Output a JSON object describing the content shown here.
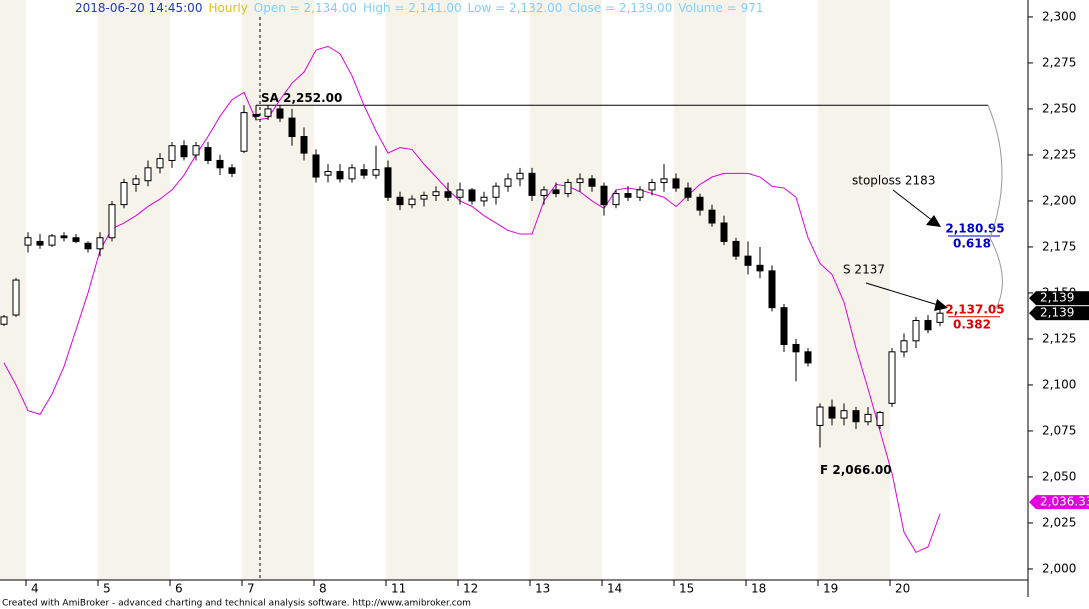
{
  "chart_data": {
    "type": "candlestick",
    "title": "2018-06-20 14:45:00",
    "interval": "Hourly",
    "quote": [
      "Open = 2,134.00",
      "High = 2,141.00",
      "Low = 2,132.00",
      "Close = 2,139.00",
      "Volume = 971"
    ],
    "categories": [
      null,
      null,
      "4",
      null,
      null,
      null,
      null,
      null,
      "5",
      null,
      null,
      null,
      null,
      null,
      "6",
      null,
      null,
      null,
      null,
      null,
      "7",
      null,
      null,
      null,
      null,
      null,
      "8",
      null,
      null,
      null,
      null,
      null,
      "11",
      null,
      null,
      null,
      null,
      null,
      "12",
      null,
      null,
      null,
      null,
      null,
      "13",
      null,
      null,
      null,
      null,
      null,
      "14",
      null,
      null,
      null,
      null,
      null,
      "15",
      null,
      null,
      null,
      null,
      null,
      "18",
      null,
      null,
      null,
      null,
      null,
      "19",
      null,
      null,
      null,
      null,
      null,
      "20",
      null,
      null,
      null,
      null
    ],
    "open": [
      2133,
      2138,
      2176,
      2178,
      2176,
      2181,
      2180,
      2177,
      2174,
      2180,
      2198,
      2209,
      2211,
      2218,
      2222,
      2230,
      2225,
      2229,
      2222,
      2218,
      2227,
      2247,
      2246,
      2250,
      2245,
      2235,
      2225,
      2214,
      2216,
      2212,
      2217,
      2214,
      2218,
      2202,
      2198,
      2201,
      2203,
      2205,
      2202,
      2206,
      2200,
      2202,
      2208,
      2212,
      2215,
      2203,
      2206,
      2204,
      2210,
      2212,
      2208,
      2198,
      2204,
      2202,
      2206,
      2210,
      2212,
      2207,
      2202,
      2195,
      2188,
      2178,
      2170,
      2165,
      2162,
      2142,
      2122,
      2118,
      2078,
      2088,
      2082,
      2086,
      2080,
      2078,
      2090,
      2118,
      2124,
      2135,
      2134
    ],
    "high": [
      2138,
      2158,
      2183,
      2182,
      2182,
      2183,
      2182,
      2178,
      2183,
      2200,
      2212,
      2214,
      2222,
      2226,
      2232,
      2233,
      2232,
      2232,
      2225,
      2220,
      2252,
      2252,
      2252,
      2252,
      2250,
      2240,
      2228,
      2220,
      2220,
      2220,
      2220,
      2230,
      2222,
      2205,
      2203,
      2205,
      2208,
      2210,
      2210,
      2207,
      2205,
      2210,
      2215,
      2218,
      2218,
      2208,
      2210,
      2212,
      2215,
      2214,
      2210,
      2206,
      2208,
      2208,
      2212,
      2220,
      2215,
      2210,
      2204,
      2198,
      2192,
      2180,
      2178,
      2175,
      2165,
      2144,
      2125,
      2120,
      2090,
      2092,
      2090,
      2088,
      2088,
      2086,
      2120,
      2128,
      2137,
      2138,
      2141
    ],
    "low": [
      2132,
      2137,
      2172,
      2174,
      2175,
      2178,
      2177,
      2172,
      2170,
      2178,
      2196,
      2205,
      2208,
      2215,
      2218,
      2222,
      2222,
      2220,
      2214,
      2213,
      2226,
      2244,
      2244,
      2243,
      2230,
      2222,
      2210,
      2210,
      2210,
      2210,
      2212,
      2212,
      2200,
      2195,
      2196,
      2197,
      2200,
      2200,
      2198,
      2198,
      2197,
      2198,
      2205,
      2208,
      2200,
      2198,
      2202,
      2202,
      2205,
      2205,
      2192,
      2196,
      2200,
      2200,
      2203,
      2205,
      2205,
      2200,
      2192,
      2186,
      2176,
      2168,
      2160,
      2158,
      2140,
      2118,
      2102,
      2110,
      2066,
      2078,
      2078,
      2076,
      2078,
      2076,
      2088,
      2115,
      2120,
      2128,
      2132
    ],
    "close": [
      2137,
      2157,
      2180,
      2176,
      2181,
      2180,
      2178,
      2174,
      2180,
      2198,
      2210,
      2212,
      2218,
      2223,
      2230,
      2224,
      2230,
      2222,
      2218,
      2215,
      2248,
      2246,
      2250,
      2245,
      2235,
      2226,
      2213,
      2216,
      2212,
      2218,
      2214,
      2217,
      2202,
      2198,
      2201,
      2203,
      2205,
      2202,
      2206,
      2200,
      2202,
      2208,
      2212,
      2215,
      2203,
      2206,
      2204,
      2210,
      2212,
      2208,
      2198,
      2204,
      2202,
      2206,
      2210,
      2212,
      2207,
      2202,
      2195,
      2188,
      2178,
      2170,
      2165,
      2162,
      2142,
      2122,
      2118,
      2112,
      2088,
      2082,
      2086,
      2080,
      2084,
      2085,
      2118,
      2124,
      2135,
      2130,
      2139
    ],
    "up_color": "#ffffff",
    "down_color": "#000000",
    "line_color": "#e000e0",
    "line_values": [
      2112,
      2100,
      2086,
      2084,
      2095,
      2110,
      2130,
      2150,
      2173,
      2185,
      2188,
      2192,
      2197,
      2201,
      2206,
      2214,
      2225,
      2235,
      2246,
      2255,
      2259,
      2244,
      2245,
      2255,
      2264,
      2270,
      2282,
      2284,
      2280,
      2268,
      2252,
      2238,
      2226,
      2229,
      2228,
      2220,
      2213,
      2206,
      2200,
      2197,
      2192,
      2188,
      2184,
      2182,
      2182,
      2200,
      2209,
      2208,
      2205,
      2200,
      2196,
      2206,
      2207,
      2206,
      2204,
      2202,
      2197,
      2203,
      2209,
      2213,
      2215,
      2215,
      2215,
      2213,
      2208,
      2207,
      2202,
      2180,
      2166,
      2160,
      2145,
      2120,
      2098,
      2075,
      2052,
      2020,
      2009,
      2012,
      2030
    ],
    "ylim": [
      1994,
      2309.2
    ],
    "yticks": [
      {
        "value": 2000,
        "label": "2,000"
      },
      {
        "value": 2025,
        "label": "2,025"
      },
      {
        "value": 2050,
        "label": "2,050"
      },
      {
        "value": 2075,
        "label": "2,075"
      },
      {
        "value": 2100,
        "label": "2,100"
      },
      {
        "value": 2125,
        "label": "2,125"
      },
      {
        "value": 2150,
        "label": "2,150"
      },
      {
        "value": 2175,
        "label": "2,175"
      },
      {
        "value": 2200,
        "label": "2,200"
      },
      {
        "value": 2225,
        "label": "2,225"
      },
      {
        "value": 2250,
        "label": "2,250"
      },
      {
        "value": 2275,
        "label": "2,275"
      },
      {
        "value": 2300,
        "label": "2,300"
      }
    ],
    "price_labels": [
      {
        "value": 2139,
        "label": "2,139",
        "color": "#000000"
      },
      {
        "value": 2139,
        "label": "2,139",
        "color": "#000000"
      },
      {
        "value": 2036.33,
        "label": "2,036.33",
        "color": "#e000e0"
      }
    ],
    "level": {
      "text": "SA  2,252.00",
      "value": 2252
    },
    "low_note": {
      "text": "F  2,066.00",
      "value": 2066
    },
    "fib": [
      {
        "price": {
          "value": 2180.95,
          "label": "2,180.95"
        },
        "ratio": 0.618,
        "color": "#0000cc"
      },
      {
        "price": {
          "value": 2137.05,
          "label": "2,137.05"
        },
        "ratio": 0.382,
        "color": "#dd0000"
      }
    ],
    "notes": [
      "stoploss 2183",
      "S 2137"
    ],
    "footer": "Created with AmiBroker - advanced charting and technical analysis software. http://www.amibroker.com"
  }
}
